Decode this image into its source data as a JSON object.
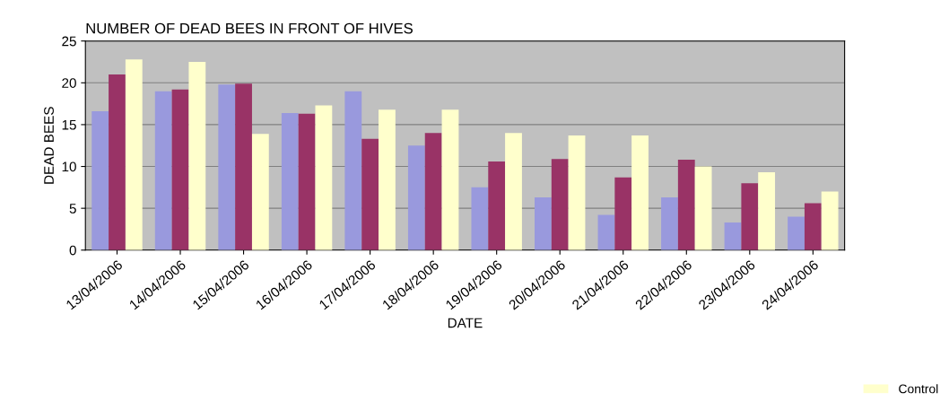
{
  "chart_data": {
    "type": "bar",
    "title": "NUMBER OF DEAD BEES IN FRONT OF HIVES",
    "xlabel": "DATE",
    "ylabel": "DEAD BEES",
    "categories": [
      "13/04/2006",
      "14/04/2006",
      "15/04/2006",
      "16/04/2006",
      "17/04/2006",
      "18/04/2006",
      "19/04/2006",
      "20/04/2006",
      "21/04/2006",
      "22/04/2006",
      "23/04/2006",
      "24/04/2006"
    ],
    "series": [
      {
        "color": "#9999dd",
        "values": [
          16.6,
          19,
          19.8,
          16.4,
          19,
          12.5,
          7.5,
          6.3,
          4.2,
          6.3,
          3.3,
          4
        ]
      },
      {
        "color": "#993366",
        "values": [
          21,
          19.2,
          19.9,
          16.3,
          13.3,
          14,
          10.6,
          10.9,
          8.7,
          10.8,
          8,
          5.6
        ]
      },
      {
        "name": "Control",
        "color": "#ffffcc",
        "values": [
          22.8,
          22.5,
          13.9,
          17.3,
          16.8,
          16.8,
          14,
          13.7,
          13.7,
          10,
          9.3,
          7
        ]
      }
    ],
    "ylim": [
      0,
      25
    ],
    "yticks": [
      0,
      5,
      10,
      15,
      20,
      25
    ],
    "grid": "y",
    "legend": "bottom right"
  }
}
